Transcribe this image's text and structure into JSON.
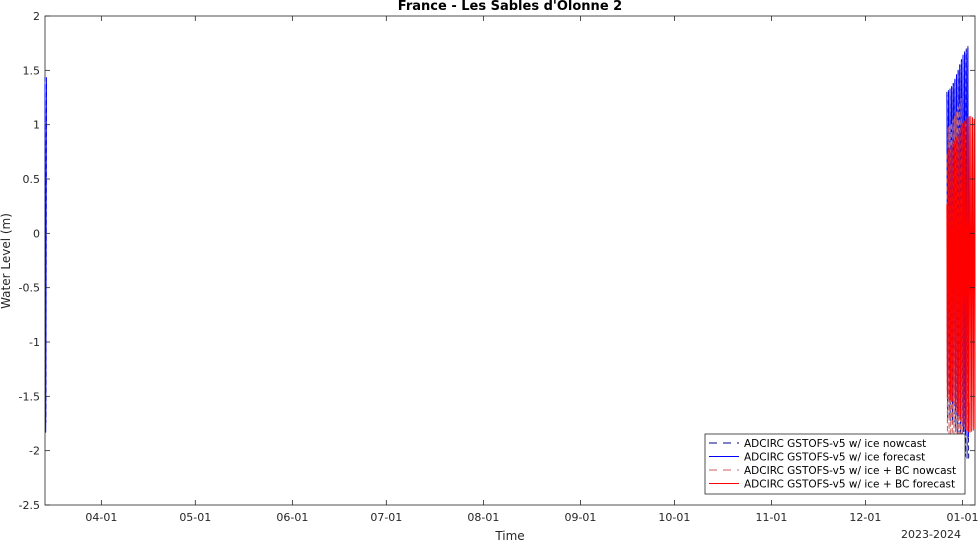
{
  "chart_data": {
    "type": "line",
    "title": "France - Les Sables d'Olonne 2",
    "xlabel": "Time",
    "ylabel": "Water Level (m)",
    "x_secondary_label": "2023-2024",
    "ylim": [
      -2.5,
      2
    ],
    "yticks": [
      -2.5,
      -2,
      -1.5,
      -1,
      -0.5,
      0,
      0.5,
      1,
      1.5,
      2
    ],
    "ytick_labels": [
      "-2.5",
      "-2",
      "-1.5",
      "-1",
      "-0.5",
      "0",
      "0.5",
      "1",
      "1.5",
      "2"
    ],
    "xlim": [
      "2023-03-14",
      "2024-01-05"
    ],
    "xticks": [
      "2023-04-01",
      "2023-05-01",
      "2023-06-01",
      "2023-07-01",
      "2023-08-01",
      "2023-09-01",
      "2023-10-01",
      "2023-11-01",
      "2023-12-01",
      "2024-01-01"
    ],
    "xtick_labels": [
      "04-01",
      "05-01",
      "06-01",
      "07-01",
      "08-01",
      "09-01",
      "10-01",
      "11-01",
      "12-01",
      "01-01"
    ],
    "grid": false,
    "legend_position": "bottom-right",
    "series": [
      {
        "name": "ADCIRC GSTOFS-v5 w/ ice nowcast",
        "color": "#00008b",
        "dash": true,
        "segments": [
          {
            "start": "2023-03-14",
            "end": "2023-03-14T12:00",
            "amplitude": 1.8,
            "offset": -0.15,
            "period_hours": 12.42
          },
          {
            "start": "2023-12-27",
            "end": "2024-01-03",
            "amplitude": 1.7,
            "offset": -0.2,
            "period_hours": 12.42
          }
        ]
      },
      {
        "name": "ADCIRC GSTOFS-v5 w/ ice forecast",
        "color": "#0000ff",
        "dash": false,
        "segments": [
          {
            "start": "2023-03-14",
            "end": "2023-03-14T12:00",
            "amplitude": 1.85,
            "offset": -0.15,
            "period_hours": 12.42
          },
          {
            "start": "2023-12-27",
            "end": "2024-01-03",
            "amplitude": 1.6,
            "offset": -0.05,
            "period_hours": 12.42
          }
        ]
      },
      {
        "name": "ADCIRC GSTOFS-v5 w/ ice + BC nowcast",
        "color": "#cd5c5c",
        "dash": true,
        "segments": [
          {
            "start": "2023-12-27",
            "end": "2024-01-01",
            "amplitude": 1.6,
            "offset": -0.35,
            "period_hours": 12.42
          }
        ]
      },
      {
        "name": "ADCIRC GSTOFS-v5 w/ ice + BC forecast",
        "color": "#ff0000",
        "dash": false,
        "segments": [
          {
            "start": "2023-12-27",
            "end": "2024-01-05",
            "amplitude": 1.3,
            "offset": -0.3,
            "period_hours": 12.42
          }
        ]
      }
    ]
  }
}
